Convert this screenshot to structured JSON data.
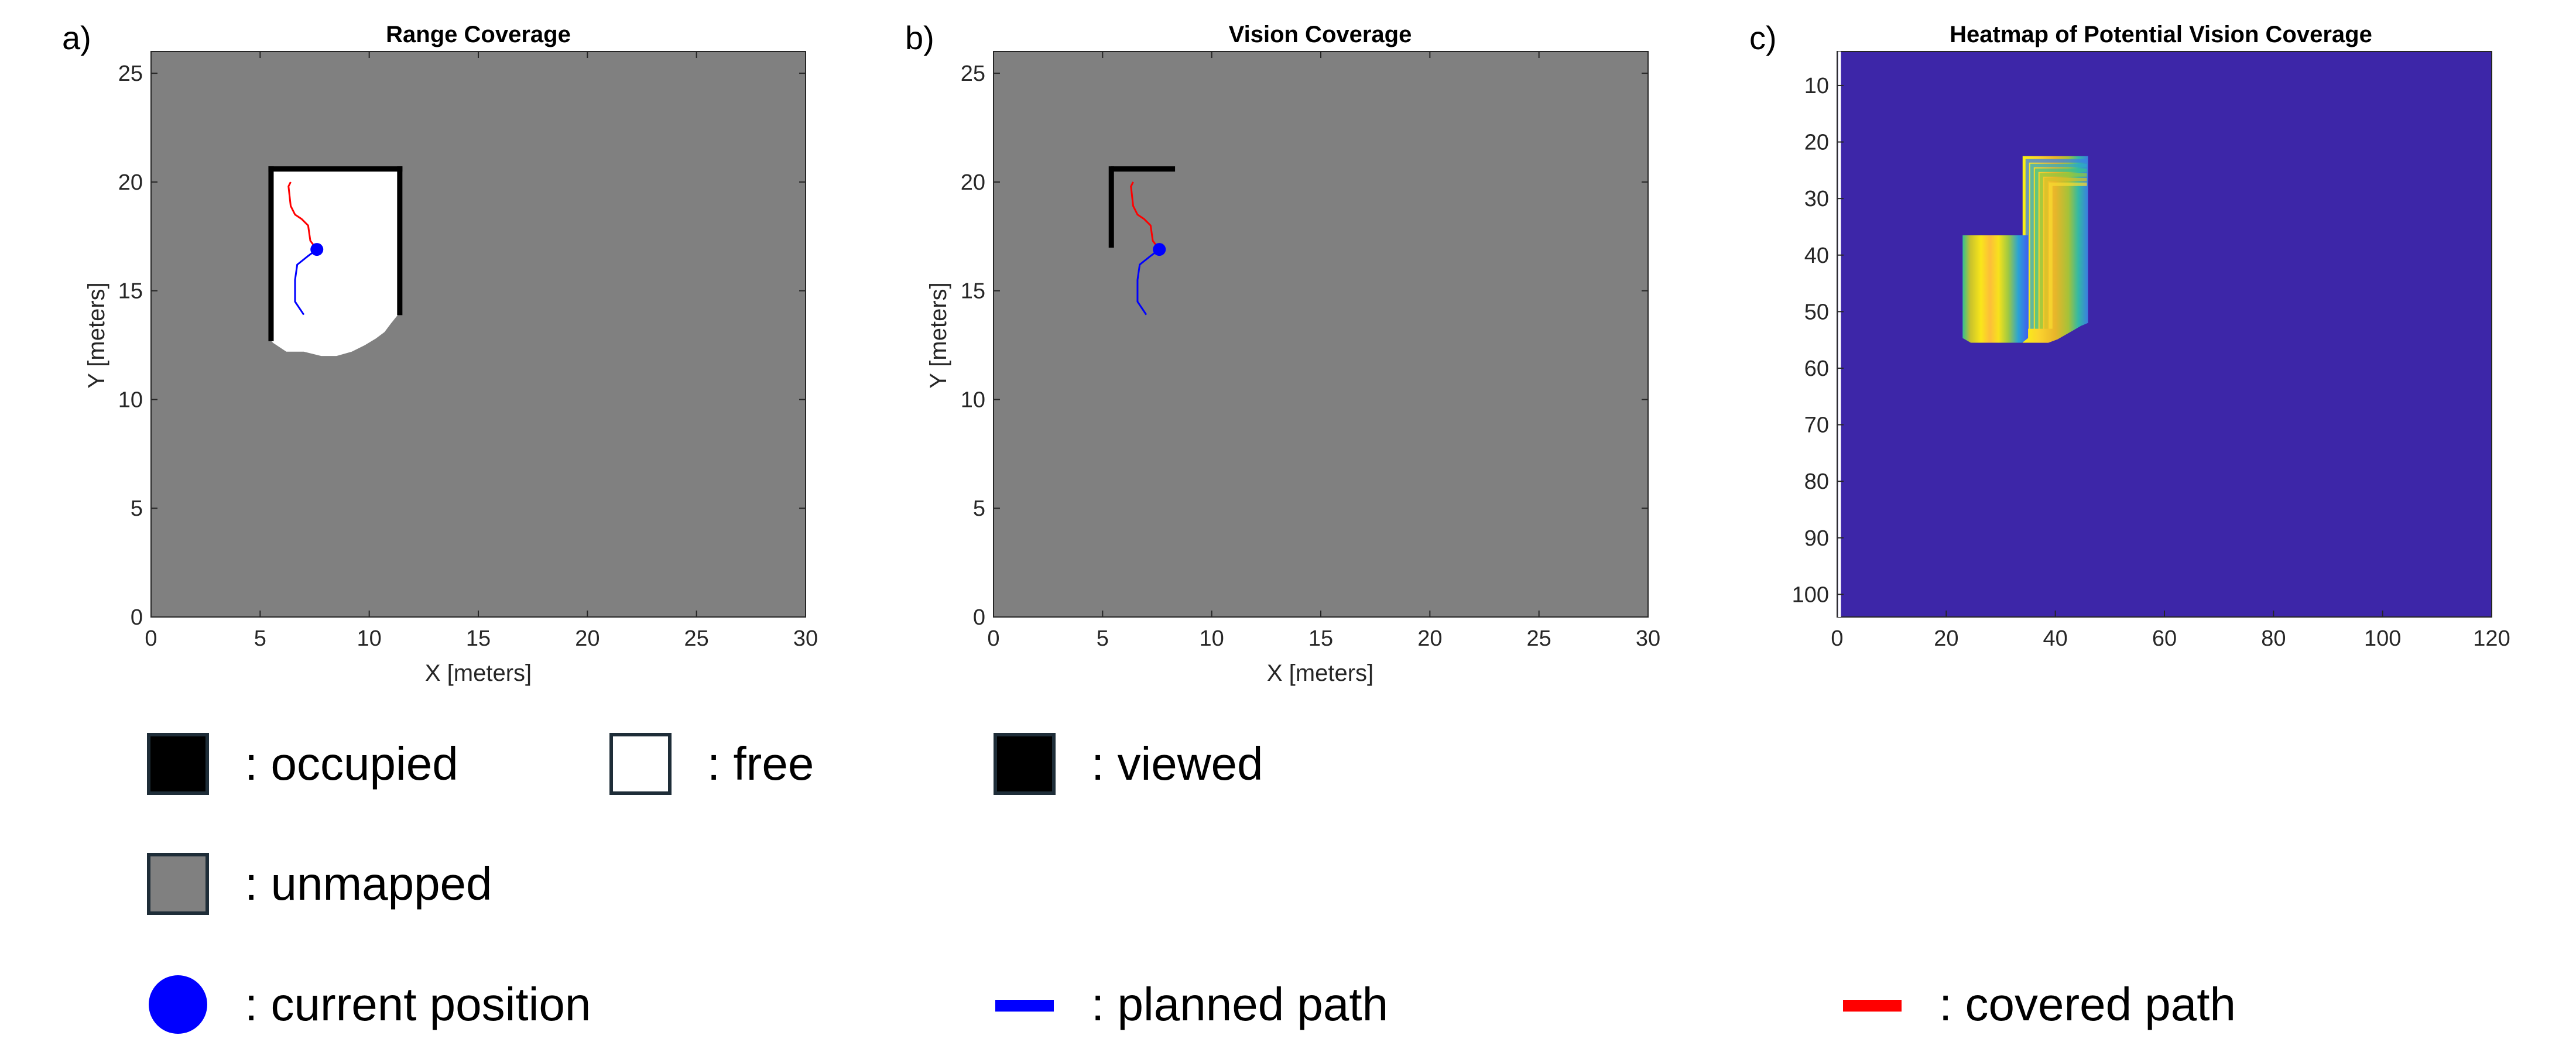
{
  "colors": {
    "unmapped": "#808080",
    "free": "#ffffff",
    "occupied": "#000000",
    "current_position": "#0000ff",
    "planned_path": "#0000ff",
    "covered_path": "#ff0000",
    "heatmap_low": "#3d26a8",
    "heatmap_mid": "#24b9b4",
    "heatmap_high": "#f9f213"
  },
  "chart_data": [
    {
      "type": "map",
      "panel": "a)",
      "title": "Range Coverage",
      "xlabel": "X [meters]",
      "ylabel": "Y [meters]",
      "xlim": [
        0,
        30
      ],
      "ylim": [
        0,
        26
      ],
      "xticks": [
        0,
        5,
        10,
        15,
        20,
        25,
        30
      ],
      "yticks": [
        0,
        5,
        10,
        15,
        20,
        25
      ],
      "free_region": [
        [
          5.4,
          20.6
        ],
        [
          11.4,
          20.6
        ],
        [
          11.4,
          14.0
        ],
        [
          11.0,
          13.5
        ],
        [
          10.7,
          13.1
        ],
        [
          10.3,
          12.8
        ],
        [
          9.8,
          12.5
        ],
        [
          9.2,
          12.2
        ],
        [
          8.5,
          12.0
        ],
        [
          7.8,
          12.0
        ],
        [
          7.0,
          12.2
        ],
        [
          6.2,
          12.2
        ],
        [
          5.6,
          12.6
        ],
        [
          5.4,
          12.8
        ]
      ],
      "occupied_walls": [
        [
          [
            5.5,
            20.6
          ],
          [
            11.4,
            20.6
          ]
        ],
        [
          [
            5.5,
            20.6
          ],
          [
            5.5,
            12.8
          ]
        ],
        [
          [
            11.4,
            20.6
          ],
          [
            11.4,
            14.0
          ]
        ]
      ],
      "current_position": [
        7.6,
        16.9
      ],
      "planned_path": [
        [
          7.6,
          16.9
        ],
        [
          7.2,
          16.6
        ],
        [
          6.7,
          16.2
        ],
        [
          6.6,
          15.5
        ],
        [
          6.6,
          14.5
        ],
        [
          7.0,
          13.9
        ]
      ],
      "covered_path": [
        [
          6.4,
          20.0
        ],
        [
          6.3,
          19.8
        ],
        [
          6.4,
          18.9
        ],
        [
          6.6,
          18.5
        ],
        [
          6.9,
          18.3
        ],
        [
          7.2,
          18.0
        ],
        [
          7.3,
          17.3
        ],
        [
          7.6,
          16.9
        ]
      ]
    },
    {
      "type": "map",
      "panel": "b)",
      "title": "Vision Coverage",
      "xlabel": "X [meters]",
      "ylabel": "Y [meters]",
      "xlim": [
        0,
        30
      ],
      "ylim": [
        0,
        26
      ],
      "xticks": [
        0,
        5,
        10,
        15,
        20,
        25,
        30
      ],
      "yticks": [
        0,
        5,
        10,
        15,
        20,
        25
      ],
      "viewed_walls": [
        [
          [
            5.5,
            20.6
          ],
          [
            8.2,
            20.6
          ]
        ],
        [
          [
            5.4,
            20.6
          ],
          [
            5.4,
            17.1
          ]
        ]
      ],
      "current_position": [
        7.6,
        16.9
      ],
      "planned_path": [
        [
          7.6,
          16.9
        ],
        [
          7.2,
          16.6
        ],
        [
          6.7,
          16.2
        ],
        [
          6.6,
          15.5
        ],
        [
          6.6,
          14.5
        ],
        [
          7.0,
          13.9
        ]
      ],
      "covered_path": [
        [
          6.4,
          20.0
        ],
        [
          6.3,
          19.8
        ],
        [
          6.4,
          18.9
        ],
        [
          6.6,
          18.5
        ],
        [
          6.9,
          18.3
        ],
        [
          7.2,
          18.0
        ],
        [
          7.3,
          17.3
        ],
        [
          7.6,
          16.9
        ]
      ]
    },
    {
      "type": "heatmap",
      "panel": "c)",
      "title": "Heatmap of Potential Vision Coverage",
      "xlim": [
        0,
        120
      ],
      "ylim": [
        104,
        4
      ],
      "xticks": [
        0,
        20,
        40,
        60,
        80,
        100,
        120
      ],
      "yticks": [
        10,
        20,
        30,
        40,
        50,
        60,
        70,
        80,
        90,
        100
      ],
      "upper_block": {
        "x": [
          34,
          46
        ],
        "y": [
          22.5,
          52
        ],
        "tapered_bottom_right": true
      },
      "lower_block": {
        "x": [
          23,
          35
        ],
        "y": [
          36.5,
          55.5
        ]
      }
    }
  ],
  "legend": [
    {
      "symbol": "square",
      "fill": "#000000",
      "label": ": occupied"
    },
    {
      "symbol": "square",
      "fill": "#ffffff",
      "label": ": free"
    },
    {
      "symbol": "square",
      "fill": "#000000",
      "label": ": viewed"
    },
    {
      "symbol": "square",
      "fill": "#808080",
      "label": ": unmapped"
    },
    {
      "symbol": "circle",
      "fill": "#0000ff",
      "label": ": current position"
    },
    {
      "symbol": "line",
      "fill": "#0000ff",
      "label": ": planned path"
    },
    {
      "symbol": "line",
      "fill": "#ff0000",
      "label": ": covered path"
    }
  ]
}
